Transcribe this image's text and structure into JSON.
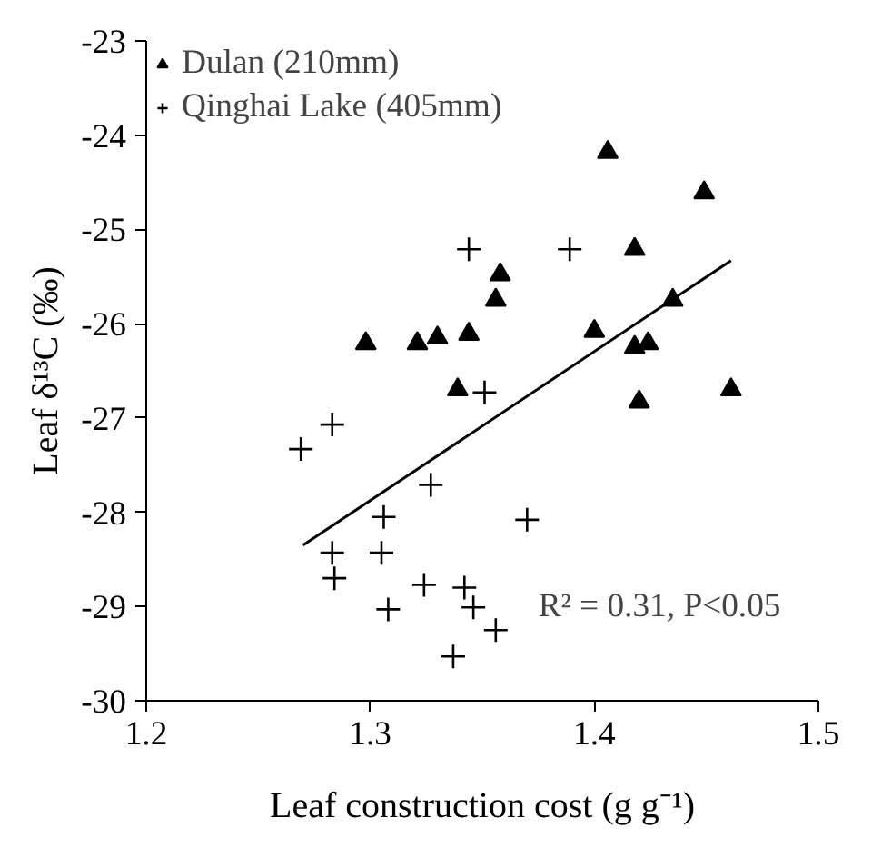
{
  "chart_data": {
    "type": "scatter",
    "xlabel": "Leaf construction cost (g g⁻¹)",
    "ylabel": "Leaf δ¹³C (‰)",
    "xlim": [
      1.2,
      1.5
    ],
    "xticks": [
      {
        "value": 1.2,
        "label": "1.2"
      },
      {
        "value": 1.3,
        "label": "1.3"
      },
      {
        "value": 1.4,
        "label": "1.4"
      },
      {
        "value": 1.5,
        "label": "1.5"
      }
    ],
    "ylim": [
      -30,
      -23
    ],
    "yticks": [
      -30,
      -29,
      -28,
      -27,
      -26,
      -25,
      -24,
      -23
    ],
    "legend": "top left",
    "annotations": [
      "R² = 0.31, P<0.05"
    ],
    "series": [
      {
        "name": "Dulan (210mm)",
        "marker": "triangle",
        "color": "#000000",
        "x": [
          1.406,
          1.449,
          1.418,
          1.358,
          1.356,
          1.435,
          1.298,
          1.321,
          1.33,
          1.344,
          1.4,
          1.418,
          1.424,
          1.339,
          1.42,
          1.461
        ],
        "values": [
          -24.18,
          -24.61,
          -25.21,
          -25.48,
          -25.75,
          -25.75,
          -26.21,
          -26.21,
          -26.15,
          -26.11,
          -26.08,
          -26.25,
          -26.21,
          -26.7,
          -26.83,
          -26.7
        ]
      },
      {
        "name": "Qinghai Lake (405mm)",
        "marker": "cross",
        "color": "#000000",
        "x": [
          1.344,
          1.389,
          1.351,
          1.283,
          1.269,
          1.327,
          1.306,
          1.37,
          1.283,
          1.305,
          1.284,
          1.324,
          1.342,
          1.346,
          1.308,
          1.356,
          1.337
        ],
        "values": [
          -25.21,
          -25.21,
          -26.73,
          -27.07,
          -27.33,
          -27.71,
          -28.05,
          -28.08,
          -28.43,
          -28.43,
          -28.7,
          -28.77,
          -28.8,
          -29.01,
          -29.03,
          -29.25,
          -29.53
        ]
      },
      {
        "type": "line",
        "color": "#000000",
        "x": [
          1.27,
          1.461
        ],
        "values": [
          -28.35,
          -25.33
        ]
      }
    ]
  }
}
